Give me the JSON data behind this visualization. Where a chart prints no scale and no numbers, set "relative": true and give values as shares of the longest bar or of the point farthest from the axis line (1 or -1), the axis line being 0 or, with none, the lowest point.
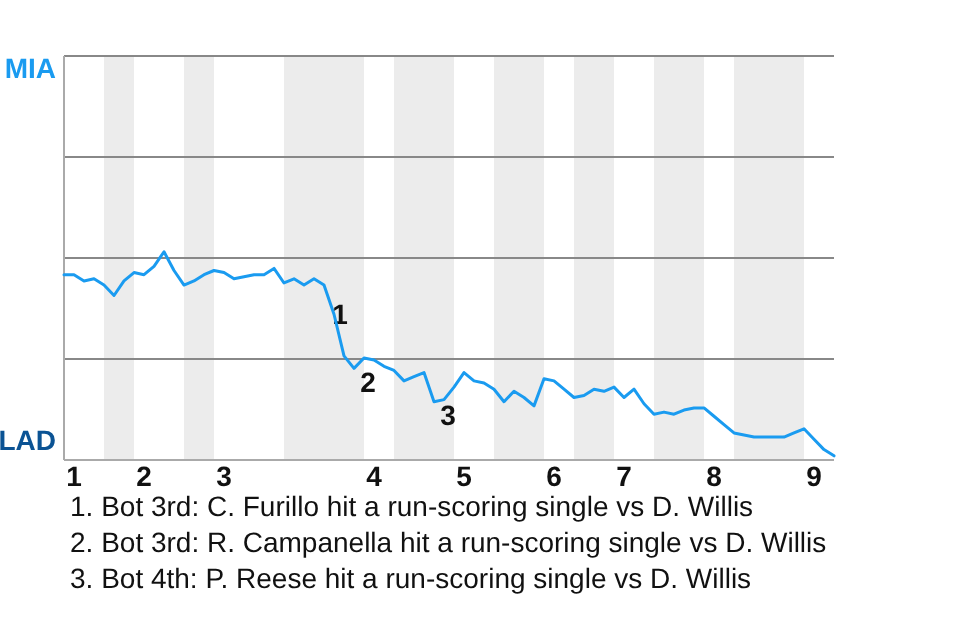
{
  "chart_data": {
    "type": "line",
    "relative": true,
    "categories": [
      null,
      "1",
      null,
      null,
      null,
      null,
      null,
      null,
      "2",
      null,
      null,
      null,
      null,
      null,
      null,
      null,
      "3",
      null,
      null,
      null,
      null,
      null,
      null,
      null,
      null,
      null,
      null,
      null,
      null,
      null,
      null,
      "4",
      null,
      null,
      null,
      null,
      null,
      null,
      null,
      null,
      "5",
      null,
      null,
      null,
      null,
      null,
      null,
      null,
      null,
      "6",
      null,
      null,
      null,
      null,
      null,
      null,
      "7",
      null,
      null,
      null,
      null,
      null,
      null,
      null,
      null,
      "8",
      null,
      null,
      null,
      null,
      null,
      null,
      null,
      null,
      null,
      "9",
      null,
      null
    ],
    "series": [
      {
        "color": "#1a9bf0",
        "values": [
          0.89,
          0.89,
          0.86,
          0.87,
          0.84,
          0.79,
          0.86,
          0.9,
          0.89,
          0.93,
          1,
          0.91,
          0.84,
          0.86,
          0.89,
          0.91,
          0.9,
          0.87,
          0.88,
          0.89,
          0.89,
          0.92,
          0.85,
          0.87,
          0.84,
          0.87,
          0.84,
          0.7,
          0.5,
          0.44,
          0.49,
          0.48,
          0.45,
          0.43,
          0.38,
          0.4,
          0.42,
          0.28,
          0.29,
          0.35,
          0.42,
          0.38,
          0.37,
          0.34,
          0.28,
          0.33,
          0.3,
          0.26,
          0.39,
          0.38,
          0.34,
          0.3,
          0.31,
          0.34,
          0.33,
          0.35,
          0.3,
          0.34,
          0.27,
          0.22,
          0.23,
          0.22,
          0.24,
          0.25,
          0.25,
          0.21,
          0.17,
          0.13,
          0.12,
          0.11,
          0.11,
          0.11,
          0.11,
          0.13,
          0.15,
          0.1,
          0.05,
          0.02
        ],
        "marker": "none"
      }
    ],
    "line_style": "solid",
    "ref_lines": [
      {
        "axis": "y",
        "value": 0.485,
        "color": "#888888"
      },
      {
        "axis": "y",
        "value": 0.97,
        "color": "#888888"
      },
      {
        "axis": "y",
        "value": 1.455,
        "color": "#888888"
      },
      {
        "axis": "y",
        "value": 1.94,
        "color": "#888888"
      }
    ],
    "annotations": [
      {
        "text": "1",
        "y": 0.7
      },
      {
        "text": "2",
        "y": 0.44
      },
      {
        "text": "3",
        "y": 0.28
      },
      "MIA",
      "LAD",
      "1. Bot 3rd: C. Furillo hit a run-scoring single vs D. Willis",
      "2. Bot 3rd: R. Campanella hit a run-scoring single vs D. Willis",
      "3. Bot 4th: P. Reese hit a run-scoring single vs D. Willis"
    ]
  }
}
